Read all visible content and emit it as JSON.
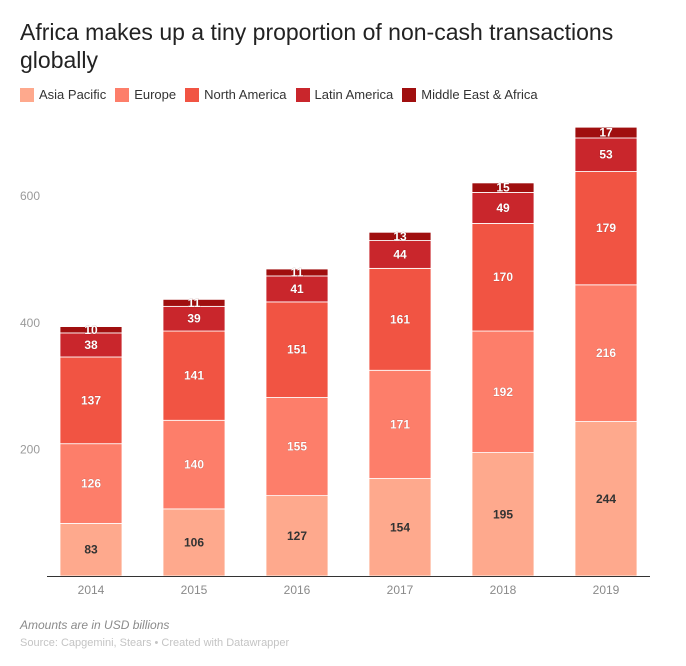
{
  "chart_data": {
    "type": "bar",
    "stacked": true,
    "title": "Africa makes up a tiny proportion of non-cash transactions globally",
    "categories": [
      "2014",
      "2015",
      "2016",
      "2017",
      "2018",
      "2019"
    ],
    "series": [
      {
        "name": "Asia Pacific",
        "color": "#fea98d",
        "values": [
          83,
          106,
          127,
          154,
          195,
          244
        ]
      },
      {
        "name": "Europe",
        "color": "#fd7e6a",
        "values": [
          126,
          140,
          155,
          171,
          192,
          216
        ]
      },
      {
        "name": "North America",
        "color": "#f15443",
        "values": [
          137,
          141,
          151,
          161,
          170,
          179
        ]
      },
      {
        "name": "Latin America",
        "color": "#c9262c",
        "values": [
          38,
          39,
          41,
          44,
          49,
          53
        ]
      },
      {
        "name": "Middle East & Africa",
        "color": "#a00f0f",
        "values": [
          10,
          11,
          11,
          13,
          15,
          17
        ]
      }
    ],
    "yticks": [
      200,
      400,
      600
    ],
    "ylim": [
      0,
      720
    ],
    "grid": false,
    "legend": "top-left",
    "note": "Amounts are in USD billions",
    "source": "Source: Capgemini, Stears • Created with Datawrapper"
  }
}
